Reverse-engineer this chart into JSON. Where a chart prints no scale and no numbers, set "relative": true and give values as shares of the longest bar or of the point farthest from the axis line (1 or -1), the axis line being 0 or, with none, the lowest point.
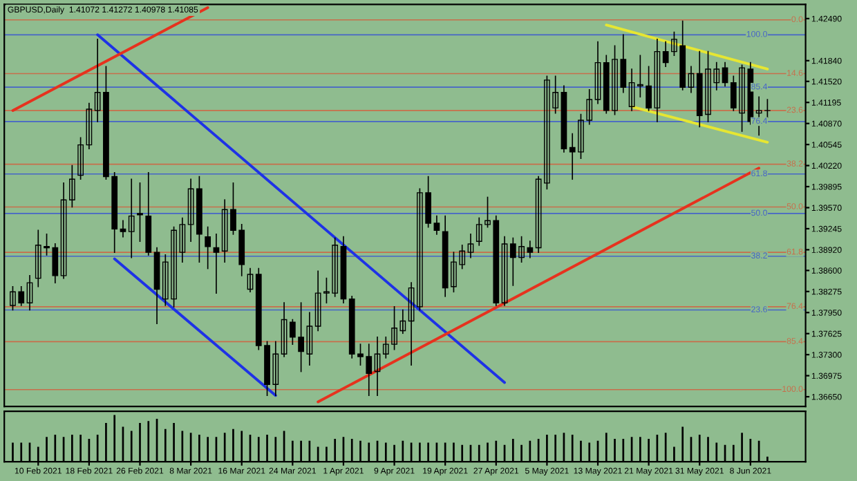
{
  "chart_data": [
    {
      "type": "candlestick",
      "title": "GBPUSD,Daily  1.41072 1.41272 1.40978 1.41085",
      "categories": [
        null,
        null,
        null,
        null,
        null,
        null,
        null,
        null,
        null,
        null,
        null,
        null,
        null,
        null,
        null,
        null,
        null,
        null,
        null,
        null,
        null,
        null,
        null,
        null,
        null,
        null,
        null,
        null,
        null,
        null,
        null,
        null,
        null,
        null,
        null,
        null,
        null,
        null,
        null,
        null,
        null,
        null,
        null,
        null,
        null,
        null,
        null,
        null,
        null,
        null,
        null,
        null,
        null,
        null,
        null,
        null,
        null,
        null,
        null,
        null,
        null,
        null,
        null,
        null,
        null,
        null,
        null,
        null,
        null,
        null,
        null,
        null,
        null,
        null,
        null,
        null,
        null,
        null,
        null,
        null,
        null,
        null,
        null,
        null,
        null,
        null,
        null,
        null,
        null,
        null
      ],
      "ohlc": [
        [
          1.3806,
          1.3835,
          1.3799,
          1.3827
        ],
        [
          1.3827,
          1.3835,
          1.3806,
          1.381
        ],
        [
          1.381,
          1.3852,
          1.3799,
          1.3841
        ],
        [
          1.3848,
          1.3922,
          1.3835,
          1.3899
        ],
        [
          1.3897,
          1.3916,
          1.3884,
          1.3895
        ],
        [
          1.3895,
          1.3901,
          1.3841,
          1.3852
        ],
        [
          1.3852,
          1.3995,
          1.3848,
          1.3969
        ],
        [
          1.3969,
          1.4022,
          1.3958,
          1.4001
        ],
        [
          1.4007,
          1.4065,
          1.4001,
          1.4054
        ],
        [
          1.4054,
          1.4118,
          1.4048,
          1.4109
        ],
        [
          1.4107,
          1.4217,
          1.409,
          1.4135
        ],
        [
          1.4135,
          1.4175,
          1.4001,
          1.4005
        ],
        [
          1.4005,
          1.4011,
          1.3888,
          1.3924
        ],
        [
          1.3924,
          1.3937,
          1.3912,
          1.392
        ],
        [
          1.392,
          1.4001,
          1.388,
          1.3944
        ],
        [
          1.3948,
          1.3995,
          1.3905,
          1.3946
        ],
        [
          1.3944,
          1.4011,
          1.3884,
          1.3888
        ],
        [
          1.3888,
          1.3895,
          1.3778,
          1.3831
        ],
        [
          1.3816,
          1.3884,
          1.3806,
          1.3873
        ],
        [
          1.3816,
          1.3927,
          1.3804,
          1.3922
        ],
        [
          1.3888,
          1.3941,
          1.3873,
          1.3931
        ],
        [
          1.3931,
          1.4001,
          1.3905,
          1.3986
        ],
        [
          1.3986,
          1.4005,
          1.3873,
          1.3916
        ],
        [
          1.3912,
          1.3927,
          1.3863,
          1.3897
        ],
        [
          1.3895,
          1.3916,
          1.3825,
          1.3888
        ],
        [
          1.389,
          1.3969,
          1.3873,
          1.3954
        ],
        [
          1.3954,
          1.3995,
          1.3916,
          1.3922
        ],
        [
          1.3922,
          1.3931,
          1.3852,
          1.3869
        ],
        [
          1.3831,
          1.3863,
          1.3827,
          1.3854
        ],
        [
          1.3854,
          1.3863,
          1.3738,
          1.3744
        ],
        [
          1.3744,
          1.375,
          1.3667,
          1.3684
        ],
        [
          1.3684,
          1.375,
          1.3667,
          1.3731
        ],
        [
          1.3731,
          1.381,
          1.3727,
          1.3784
        ],
        [
          1.378,
          1.3784,
          1.3746,
          1.3757
        ],
        [
          1.3757,
          1.381,
          1.3704,
          1.3735
        ],
        [
          1.3731,
          1.3795,
          1.3714,
          1.3774
        ],
        [
          1.3774,
          1.3859,
          1.3767,
          1.3825
        ],
        [
          1.3825,
          1.3848,
          1.381,
          1.3827
        ],
        [
          1.3825,
          1.391,
          1.382,
          1.3899
        ],
        [
          1.3897,
          1.3912,
          1.381,
          1.3816
        ],
        [
          1.3816,
          1.382,
          1.3725,
          1.3731
        ],
        [
          1.3731,
          1.3746,
          1.3714,
          1.3727
        ],
        [
          1.3727,
          1.3746,
          1.3667,
          1.3701
        ],
        [
          1.3704,
          1.3757,
          1.3667,
          1.3731
        ],
        [
          1.3731,
          1.3757,
          1.3725,
          1.3746
        ],
        [
          1.3746,
          1.3804,
          1.3738,
          1.3771
        ],
        [
          1.3767,
          1.3799,
          1.3763,
          1.3782
        ],
        [
          1.3782,
          1.3841,
          1.3714,
          1.3833
        ],
        [
          1.3804,
          1.3986,
          1.3799,
          1.398
        ],
        [
          1.398,
          1.4005,
          1.3927,
          1.3933
        ],
        [
          1.3933,
          1.3944,
          1.3916,
          1.3922
        ],
        [
          1.392,
          1.3944,
          1.382,
          1.3833
        ],
        [
          1.3835,
          1.3888,
          1.3827,
          1.3873
        ],
        [
          1.3869,
          1.3899,
          1.3863,
          1.389
        ],
        [
          1.3888,
          1.3916,
          1.388,
          1.3901
        ],
        [
          1.3905,
          1.3941,
          1.3899,
          1.3931
        ],
        [
          1.3931,
          1.3973,
          1.3927,
          1.3937
        ],
        [
          1.3937,
          1.3944,
          1.3806,
          1.381
        ],
        [
          1.381,
          1.3912,
          1.3806,
          1.3901
        ],
        [
          1.3901,
          1.391,
          1.3837,
          1.388
        ],
        [
          1.388,
          1.3912,
          1.3873,
          1.3897
        ],
        [
          1.3895,
          1.3905,
          1.388,
          1.3888
        ],
        [
          1.3895,
          1.4005,
          1.3888,
          1.4001
        ],
        [
          1.3995,
          1.416,
          1.3986,
          1.4154
        ],
        [
          1.4111,
          1.416,
          1.4103,
          1.4135
        ],
        [
          1.4135,
          1.4145,
          1.4043,
          1.4048
        ],
        [
          1.405,
          1.4071,
          1.4001,
          1.4043
        ],
        [
          1.4043,
          1.4101,
          1.4033,
          1.4092
        ],
        [
          1.4092,
          1.4139,
          1.4086,
          1.4124
        ],
        [
          1.4124,
          1.4213,
          1.4118,
          1.4181
        ],
        [
          1.4181,
          1.4192,
          1.4103,
          1.4107
        ],
        [
          1.4107,
          1.4207,
          1.4101,
          1.4186
        ],
        [
          1.4186,
          1.4224,
          1.4135,
          1.4143
        ],
        [
          1.4113,
          1.4171,
          1.4107,
          1.415
        ],
        [
          1.4145,
          1.4192,
          1.4128,
          1.4147
        ],
        [
          1.4145,
          1.4175,
          1.4107,
          1.4111
        ],
        [
          1.4111,
          1.4217,
          1.409,
          1.4198
        ],
        [
          1.4198,
          1.4213,
          1.4175,
          1.4181
        ],
        [
          1.4198,
          1.4228,
          1.4192,
          1.4217
        ],
        [
          1.4207,
          1.4245,
          1.4139,
          1.4143
        ],
        [
          1.4143,
          1.4175,
          1.4135,
          1.4164
        ],
        [
          1.4164,
          1.4198,
          1.4082,
          1.4099
        ],
        [
          1.4101,
          1.4198,
          1.409,
          1.4171
        ],
        [
          1.415,
          1.4181,
          1.4139,
          1.4171
        ],
        [
          1.4173,
          1.4181,
          1.4145,
          1.415
        ],
        [
          1.415,
          1.416,
          1.4107,
          1.4111
        ],
        [
          1.4103,
          1.4177,
          1.4075,
          1.4173
        ],
        [
          1.4171,
          1.4181,
          1.4086,
          1.409
        ],
        [
          1.4103,
          1.4128,
          1.4069,
          1.4107
        ],
        [
          1.4107,
          1.4124,
          1.4096,
          1.4107
        ]
      ],
      "series": [
        {
          "type": "line",
          "color": "#1e32e6",
          "values": [
            null,
            null,
            null,
            null,
            null,
            null,
            null,
            null,
            null,
            null,
            1.4224,
            null,
            null,
            null,
            null,
            null,
            null,
            null,
            null,
            null,
            null,
            null,
            null,
            null,
            null,
            null,
            null,
            null,
            null,
            null,
            null,
            null,
            null,
            null,
            null,
            null,
            null,
            null,
            null,
            null,
            null,
            null,
            null,
            null,
            null,
            null,
            null,
            null,
            null,
            null,
            null,
            null,
            null,
            null,
            null,
            null,
            null,
            null,
            1.3687,
            null,
            null,
            null,
            null,
            null,
            null,
            null,
            null,
            null,
            null,
            null,
            null,
            null,
            null,
            null,
            null,
            null,
            null,
            null,
            null,
            null,
            null,
            null,
            null,
            null,
            null,
            null,
            null,
            null,
            null,
            null
          ]
        },
        {
          "type": "line",
          "color": "#1e32e6",
          "values": [
            null,
            null,
            null,
            null,
            null,
            null,
            null,
            null,
            null,
            null,
            null,
            null,
            1.3878,
            null,
            null,
            null,
            null,
            null,
            null,
            null,
            null,
            null,
            null,
            null,
            null,
            null,
            null,
            null,
            null,
            null,
            null,
            1.3667,
            null,
            null,
            null,
            null,
            null,
            null,
            null,
            null,
            null,
            null,
            null,
            null,
            null,
            null,
            null,
            null,
            null,
            null,
            null,
            null,
            null,
            null,
            null,
            null,
            null,
            null,
            null,
            null,
            null,
            null,
            null,
            null,
            null,
            null,
            null,
            null,
            null,
            null,
            null,
            null,
            null,
            null,
            null,
            null,
            null,
            null,
            null,
            null,
            null,
            null,
            null,
            null,
            null,
            null,
            null,
            null,
            null,
            null
          ]
        },
        {
          "type": "line",
          "color": "#e6321e",
          "values": [
            1.4107,
            null,
            null,
            null,
            null,
            null,
            null,
            null,
            null,
            null,
            null,
            null,
            null,
            null,
            null,
            null,
            null,
            null,
            null,
            null,
            null,
            null,
            null,
            1.4266,
            null,
            null,
            null,
            null,
            null,
            null,
            null,
            null,
            null,
            null,
            null,
            null,
            null,
            null,
            null,
            null,
            null,
            null,
            null,
            null,
            null,
            null,
            null,
            null,
            null,
            null,
            null,
            null,
            null,
            null,
            null,
            null,
            null,
            null,
            null,
            null,
            null,
            null,
            null,
            null,
            null,
            null,
            null,
            null,
            null,
            null,
            null,
            null,
            null,
            null,
            null,
            null,
            null,
            null,
            null,
            null,
            null,
            null,
            null,
            null,
            null,
            null,
            null,
            null,
            null,
            null
          ]
        },
        {
          "type": "line",
          "color": "#e6321e",
          "values": [
            null,
            null,
            null,
            null,
            null,
            null,
            null,
            null,
            null,
            null,
            null,
            null,
            null,
            null,
            null,
            null,
            null,
            null,
            null,
            null,
            null,
            null,
            null,
            null,
            null,
            null,
            null,
            null,
            null,
            null,
            null,
            null,
            null,
            null,
            null,
            null,
            1.3657,
            null,
            null,
            null,
            null,
            null,
            null,
            null,
            null,
            null,
            null,
            null,
            null,
            null,
            null,
            null,
            null,
            null,
            null,
            null,
            null,
            null,
            null,
            null,
            null,
            null,
            null,
            null,
            null,
            null,
            null,
            null,
            null,
            null,
            null,
            null,
            null,
            null,
            null,
            null,
            null,
            null,
            null,
            null,
            null,
            null,
            null,
            null,
            null,
            null,
            null,
            null,
            1.4018,
            null
          ]
        },
        {
          "type": "line",
          "color": "#e6e632",
          "values": [
            null,
            null,
            null,
            null,
            null,
            null,
            null,
            null,
            null,
            null,
            null,
            null,
            null,
            null,
            null,
            null,
            null,
            null,
            null,
            null,
            null,
            null,
            null,
            null,
            null,
            null,
            null,
            null,
            null,
            null,
            null,
            null,
            null,
            null,
            null,
            null,
            null,
            null,
            null,
            null,
            null,
            null,
            null,
            null,
            null,
            null,
            null,
            null,
            null,
            null,
            null,
            null,
            null,
            null,
            null,
            null,
            null,
            null,
            null,
            null,
            null,
            null,
            null,
            null,
            null,
            null,
            null,
            null,
            null,
            null,
            1.4239,
            null,
            null,
            null,
            null,
            null,
            null,
            null,
            null,
            null,
            null,
            null,
            null,
            null,
            null,
            null,
            null,
            null,
            null,
            1.4171
          ]
        },
        {
          "type": "line",
          "color": "#e6e632",
          "values": [
            null,
            null,
            null,
            null,
            null,
            null,
            null,
            null,
            null,
            null,
            null,
            null,
            null,
            null,
            null,
            null,
            null,
            null,
            null,
            null,
            null,
            null,
            null,
            null,
            null,
            null,
            null,
            null,
            null,
            null,
            null,
            null,
            null,
            null,
            null,
            null,
            null,
            null,
            null,
            null,
            null,
            null,
            null,
            null,
            null,
            null,
            null,
            null,
            null,
            null,
            null,
            null,
            null,
            null,
            null,
            null,
            null,
            null,
            null,
            null,
            null,
            null,
            null,
            null,
            null,
            null,
            null,
            null,
            null,
            null,
            null,
            null,
            null,
            1.4113,
            null,
            null,
            null,
            null,
            null,
            null,
            null,
            null,
            null,
            null,
            null,
            null,
            null,
            null,
            null,
            1.4058
          ]
        }
      ],
      "ref_lines": [
        {
          "axis": "y",
          "value": 1.4247,
          "color": "#c86e4b"
        },
        {
          "axis": "y",
          "value": 1.4164,
          "color": "#c86e4b"
        },
        {
          "axis": "y",
          "value": 1.4107,
          "color": "#c86e4b"
        },
        {
          "axis": "y",
          "value": 1.4024,
          "color": "#c86e4b"
        },
        {
          "axis": "y",
          "value": 1.3958,
          "color": "#c86e4b"
        },
        {
          "axis": "y",
          "value": 1.3888,
          "color": "#c86e4b"
        },
        {
          "axis": "y",
          "value": 1.3804,
          "color": "#c86e4b"
        },
        {
          "axis": "y",
          "value": 1.375,
          "color": "#c86e4b"
        },
        {
          "axis": "y",
          "value": 1.3676,
          "color": "#c86e4b"
        },
        {
          "axis": "y",
          "value": 1.4224,
          "color": "#4664c8"
        },
        {
          "axis": "y",
          "value": 1.4143,
          "color": "#4664c8"
        },
        {
          "axis": "y",
          "value": 1.409,
          "color": "#4664c8"
        },
        {
          "axis": "y",
          "value": 1.4009,
          "color": "#4664c8"
        },
        {
          "axis": "y",
          "value": 1.3948,
          "color": "#4664c8"
        },
        {
          "axis": "y",
          "value": 1.3882,
          "color": "#4664c8"
        },
        {
          "axis": "y",
          "value": 1.3799,
          "color": "#4664c8"
        }
      ],
      "annotations": [
        {
          "text": "0.0",
          "y": 1.4247
        },
        {
          "text": "14.6",
          "y": 1.4164
        },
        {
          "text": "23.6",
          "y": 1.4107
        },
        {
          "text": "38.2",
          "y": 1.4024
        },
        {
          "text": "50.0",
          "y": 1.3958
        },
        {
          "text": "61.8",
          "y": 1.3888
        },
        {
          "text": "76.4",
          "y": 1.3804
        },
        {
          "text": "85.4",
          "y": 1.375
        },
        {
          "text": "100.0",
          "y": 1.3676
        },
        {
          "text": "100.0",
          "y": 1.4224
        },
        {
          "text": "85.4",
          "y": 1.4143
        },
        {
          "text": "76.4",
          "y": 1.409
        },
        {
          "text": "61.8",
          "y": 1.4009
        },
        {
          "text": "50.0",
          "y": 1.3948
        },
        {
          "text": "38.2",
          "y": 1.3882
        },
        {
          "text": "23.6",
          "y": 1.3799
        }
      ],
      "ylim": [
        1.365,
        1.4271
      ],
      "yticks": [
        {
          "value": 1.3665,
          "label": "1.36650"
        },
        {
          "value": 1.36975,
          "label": "1.36975"
        },
        {
          "value": 1.373,
          "label": "1.37300"
        },
        {
          "value": 1.37625,
          "label": "1.37625"
        },
        {
          "value": 1.3795,
          "label": "1.37950"
        },
        {
          "value": 1.38275,
          "label": "1.38275"
        },
        {
          "value": 1.386,
          "label": "1.38600"
        },
        {
          "value": 1.3892,
          "label": "1.38920"
        },
        {
          "value": 1.39245,
          "label": "1.39245"
        },
        {
          "value": 1.3957,
          "label": "1.39570"
        },
        {
          "value": 1.39895,
          "label": "1.39895"
        },
        {
          "value": 1.4022,
          "label": "1.40220"
        },
        {
          "value": 1.40545,
          "label": "1.40545"
        },
        {
          "value": 1.4087,
          "label": "1.40870"
        },
        {
          "value": 1.41195,
          "label": "1.41195"
        },
        {
          "value": 1.4152,
          "label": "1.41520"
        },
        {
          "value": 1.4184,
          "label": "1.41840"
        },
        {
          "value": 1.4249,
          "label": "1.42490"
        }
      ],
      "tick_labels": "y"
    },
    {
      "type": "bar",
      "relative": true,
      "color": "#000000",
      "categories": [
        null,
        null,
        null,
        "10 Feb 2021",
        null,
        null,
        null,
        null,
        null,
        "18 Feb 2021",
        null,
        null,
        null,
        null,
        null,
        "26 Feb 2021",
        null,
        null,
        null,
        null,
        null,
        "8 Mar 2021",
        null,
        null,
        null,
        null,
        null,
        "16 Mar 2021",
        null,
        null,
        null,
        null,
        null,
        "24 Mar 2021",
        null,
        null,
        null,
        null,
        null,
        "1 Apr 2021",
        null,
        null,
        null,
        null,
        null,
        "9 Apr 2021",
        null,
        null,
        null,
        null,
        null,
        "19 Apr 2021",
        null,
        null,
        null,
        null,
        null,
        "27 Apr 2021",
        null,
        null,
        null,
        null,
        null,
        "5 May 2021",
        null,
        null,
        null,
        null,
        null,
        "13 May 2021",
        null,
        null,
        null,
        null,
        null,
        "21 May 2021",
        null,
        null,
        null,
        null,
        null,
        "31 May 2021",
        null,
        null,
        null,
        null,
        null,
        "8 Jun 2021",
        null,
        null
      ],
      "values": [
        0.41,
        0.41,
        0.41,
        0.32,
        0.53,
        0.58,
        0.53,
        0.58,
        0.58,
        0.49,
        0.58,
        0.83,
        1,
        0.75,
        0.66,
        0.83,
        0.87,
        0.92,
        0.7,
        0.83,
        0.66,
        0.62,
        0.58,
        0.53,
        0.53,
        0.62,
        0.7,
        0.66,
        0.58,
        0.53,
        0.58,
        0.53,
        0.66,
        0.45,
        0.45,
        0.45,
        0.32,
        0.32,
        0.49,
        0.53,
        0.49,
        0.45,
        0.41,
        0.45,
        0.41,
        0.36,
        0.45,
        0.41,
        0.41,
        0.41,
        0.41,
        0.41,
        0.41,
        0.36,
        0.36,
        0.36,
        0.41,
        0.45,
        0.36,
        0.49,
        0.36,
        0.45,
        0.49,
        0.58,
        0.58,
        0.62,
        0.58,
        0.45,
        0.41,
        0.45,
        0.62,
        0.49,
        0.49,
        0.53,
        0.53,
        0.49,
        0.58,
        0.62,
        0.32,
        0.75,
        0.53,
        0.58,
        0.53,
        0.41,
        0.36,
        0.36,
        0.62,
        0.49,
        0.45,
        0.11
      ],
      "tick_labels": "x"
    }
  ]
}
